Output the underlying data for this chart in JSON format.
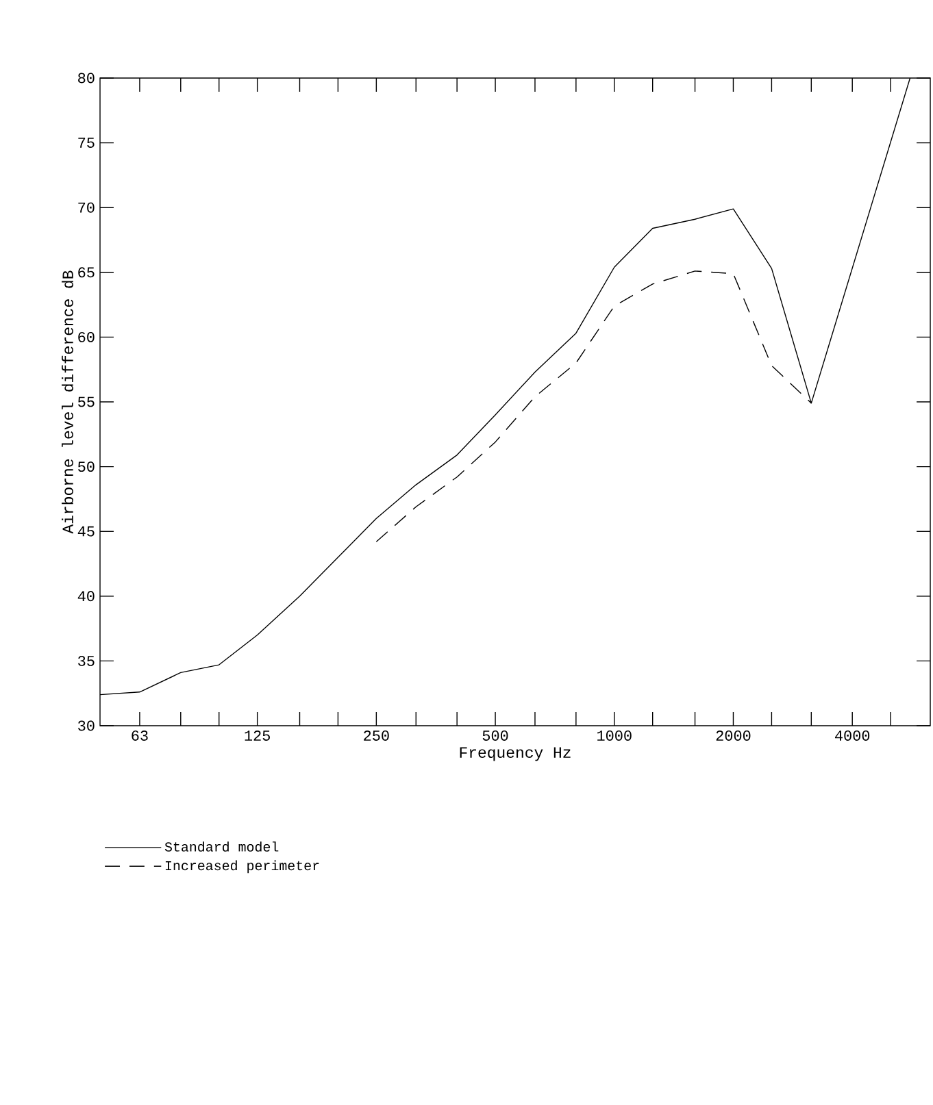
{
  "chart_data": {
    "type": "line",
    "xlabel": "Frequency Hz",
    "ylabel": "Airborne level difference dB",
    "log": "x",
    "xlim": [
      50,
      6300
    ],
    "ylim": [
      30,
      80
    ],
    "xticks": [
      {
        "value": 63,
        "label": "63"
      },
      {
        "value": 80,
        "label": null
      },
      {
        "value": 100,
        "label": null
      },
      {
        "value": 125,
        "label": "125"
      },
      {
        "value": 160,
        "label": null
      },
      {
        "value": 200,
        "label": null
      },
      {
        "value": 250,
        "label": "250"
      },
      {
        "value": 315,
        "label": null
      },
      {
        "value": 400,
        "label": null
      },
      {
        "value": 500,
        "label": "500"
      },
      {
        "value": 630,
        "label": null
      },
      {
        "value": 800,
        "label": null
      },
      {
        "value": 1000,
        "label": "1000"
      },
      {
        "value": 1250,
        "label": null
      },
      {
        "value": 1600,
        "label": null
      },
      {
        "value": 2000,
        "label": "2000"
      },
      {
        "value": 2500,
        "label": null
      },
      {
        "value": 3150,
        "label": null
      },
      {
        "value": 4000,
        "label": "4000"
      },
      {
        "value": 5000,
        "label": null
      }
    ],
    "yticks": [
      30,
      35,
      40,
      45,
      50,
      55,
      60,
      65,
      70,
      75,
      80
    ],
    "grid": false,
    "legend": "bottom left",
    "marker": "none",
    "series": [
      {
        "name": "Standard model",
        "color": "#000000",
        "line_style": "solid",
        "x": [
          50,
          63,
          80,
          100,
          125,
          160,
          200,
          250,
          315,
          400,
          500,
          630,
          800,
          1000,
          1250,
          1600,
          2000,
          2500,
          3150,
          5600
        ],
        "values": [
          32.4,
          32.6,
          34.1,
          34.7,
          37.0,
          40.0,
          43.0,
          46.0,
          48.6,
          50.9,
          54.0,
          57.3,
          60.3,
          65.4,
          68.4,
          69.1,
          69.9,
          65.3,
          54.9,
          80
        ]
      },
      {
        "name": "Increased perimeter",
        "color": "#000000",
        "line_style": "dashed",
        "x": [
          250,
          315,
          400,
          500,
          630,
          800,
          1000,
          1250,
          1600,
          2000,
          2500,
          3150
        ],
        "values": [
          44.2,
          46.9,
          49.2,
          51.9,
          55.4,
          58.0,
          62.4,
          64.1,
          65.1,
          64.9,
          57.8,
          54.9
        ]
      }
    ]
  }
}
